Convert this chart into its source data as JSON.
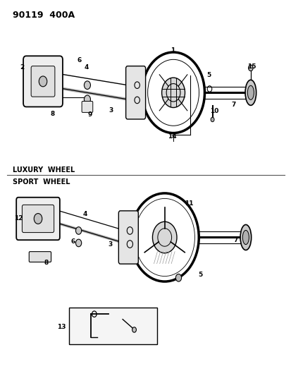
{
  "title": "90119  400A",
  "background_color": "#ffffff",
  "section1_label": "LUXURY  WHEEL",
  "section2_label": "SPORT  WHEEL",
  "figsize": [
    4.14,
    5.33
  ],
  "dpi": 100
}
